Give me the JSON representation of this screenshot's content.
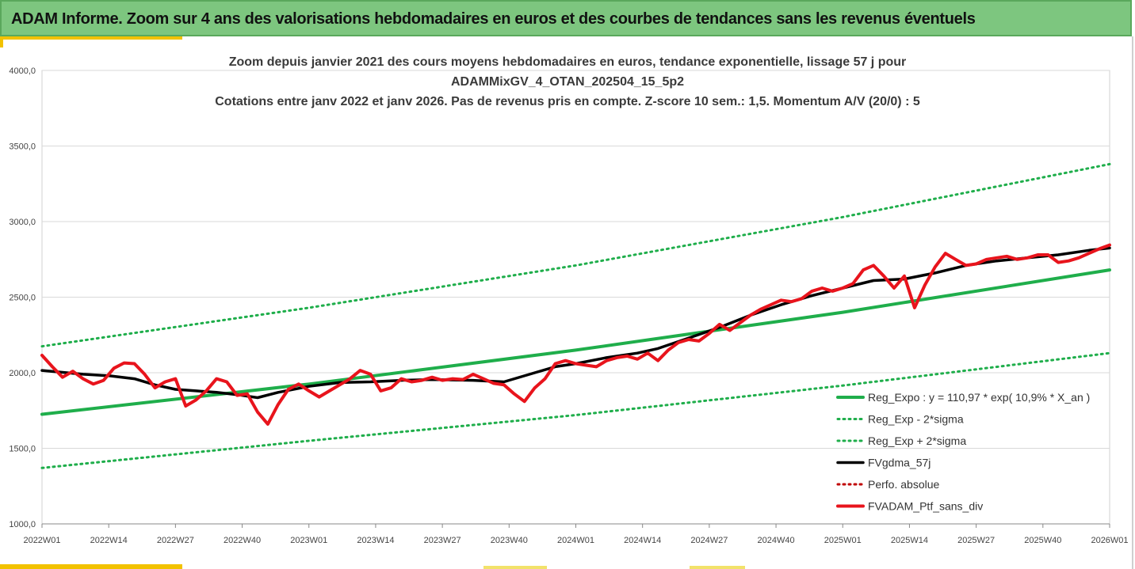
{
  "banner": {
    "title": "ADAM Informe. Zoom sur 4 ans des valorisations hebdomadaires en euros et des courbes de tendances sans les revenus éventuels"
  },
  "colors": {
    "banner_bg": "#7dc67f",
    "accent": "#f2c200",
    "reg_expo": "#1fae4b",
    "gdma": "#000000",
    "fvadam": "#e8141c",
    "perf": "#c00000"
  },
  "chart_data": {
    "type": "line",
    "title_lines": [
      "Zoom depuis janvier 2021 des cours moyens hebdomadaires  en euros, tendance exponentielle, lissage 57 j pour",
      "ADAMMixGV_4_OTAN_202504_15_5p2",
      "Cotations entre janv 2022 et janv 2026. Pas de revenus pris en compte. Z-score 10 sem.: 1,5. Momentum A/V (20/0) : 5"
    ],
    "ylim": [
      1000,
      4000
    ],
    "yticks": [
      "1000,0",
      "1500,0",
      "2000,0",
      "2500,0",
      "3000,0",
      "3500,0",
      "4000,0"
    ],
    "yticks_values": [
      1000,
      1500,
      2000,
      2500,
      3000,
      3500,
      4000
    ],
    "xlim": [
      0,
      208
    ],
    "xticks": [
      "2022W01",
      "2022W14",
      "2022W27",
      "2022W40",
      "2023W01",
      "2023W14",
      "2023W27",
      "2023W40",
      "2024W01",
      "2024W14",
      "2024W27",
      "2024W40",
      "2025W01",
      "2025W14",
      "2025W27",
      "2025W40",
      "2026W01"
    ],
    "grid": "horizontal",
    "legend_position": "bottom-right",
    "series": [
      {
        "name": "Reg_Expo : y = 110,97 * exp( 10,9% *  X_an )",
        "style": "solid",
        "color": "#1fae4b",
        "x": [
          0,
          52,
          104,
          156,
          208
        ],
        "y": [
          1725,
          1925,
          2150,
          2400,
          2680
        ]
      },
      {
        "name": "Reg_Exp - 2*sigma",
        "style": "dotted",
        "color": "#1fae4b",
        "x": [
          0,
          52,
          104,
          156,
          208
        ],
        "y": [
          1370,
          1550,
          1720,
          1915,
          2130
        ]
      },
      {
        "name": "Reg_Exp + 2*sigma",
        "style": "dotted",
        "color": "#1fae4b",
        "x": [
          0,
          52,
          104,
          156,
          208
        ],
        "y": [
          2175,
          2430,
          2710,
          3030,
          3380
        ]
      },
      {
        "name": "FVgdma_57j",
        "style": "solid",
        "color": "#000000",
        "x": [
          0,
          8,
          13,
          18,
          22,
          26,
          30,
          34,
          38,
          42,
          46,
          52,
          58,
          64,
          70,
          76,
          84,
          90,
          96,
          100,
          104,
          110,
          116,
          120,
          126,
          132,
          138,
          144,
          150,
          156,
          162,
          168,
          174,
          180,
          186,
          192,
          198,
          204,
          208
        ],
        "y": [
          2015,
          1990,
          1980,
          1960,
          1920,
          1890,
          1880,
          1870,
          1855,
          1835,
          1870,
          1910,
          1935,
          1940,
          1950,
          1955,
          1950,
          1940,
          2000,
          2040,
          2060,
          2100,
          2130,
          2160,
          2230,
          2300,
          2380,
          2450,
          2510,
          2560,
          2610,
          2620,
          2660,
          2710,
          2740,
          2760,
          2780,
          2810,
          2825
        ]
      },
      {
        "name": "Perfo. absolue",
        "style": "dotted",
        "color": "#c00000",
        "x": [],
        "y": []
      },
      {
        "name": "FVADAM_Ptf_sans_div",
        "style": "solid",
        "color": "#e8141c",
        "x": [
          0,
          2,
          4,
          6,
          8,
          10,
          12,
          14,
          16,
          18,
          20,
          22,
          24,
          26,
          28,
          30,
          32,
          34,
          36,
          38,
          40,
          42,
          44,
          46,
          48,
          50,
          52,
          54,
          56,
          58,
          60,
          62,
          64,
          66,
          68,
          70,
          72,
          74,
          76,
          78,
          80,
          82,
          84,
          86,
          88,
          90,
          92,
          94,
          96,
          98,
          100,
          102,
          104,
          106,
          108,
          110,
          112,
          114,
          116,
          118,
          120,
          122,
          124,
          126,
          128,
          130,
          132,
          134,
          136,
          138,
          140,
          142,
          144,
          146,
          148,
          150,
          152,
          154,
          156,
          158,
          160,
          162,
          164,
          166,
          168,
          170,
          172,
          174,
          176,
          178,
          180,
          182,
          184,
          186,
          188,
          190,
          192,
          194,
          196,
          198,
          200,
          202,
          204,
          206,
          208
        ],
        "y": [
          2115,
          2040,
          1970,
          2010,
          1960,
          1925,
          1950,
          2030,
          2065,
          2060,
          1990,
          1900,
          1940,
          1960,
          1780,
          1820,
          1880,
          1960,
          1940,
          1850,
          1860,
          1740,
          1660,
          1790,
          1890,
          1925,
          1880,
          1840,
          1880,
          1920,
          1960,
          2015,
          1990,
          1880,
          1900,
          1960,
          1940,
          1950,
          1970,
          1950,
          1960,
          1955,
          1990,
          1960,
          1930,
          1920,
          1860,
          1810,
          1900,
          1960,
          2060,
          2080,
          2060,
          2050,
          2040,
          2080,
          2100,
          2110,
          2090,
          2130,
          2080,
          2150,
          2200,
          2220,
          2210,
          2260,
          2320,
          2280,
          2330,
          2380,
          2420,
          2450,
          2480,
          2470,
          2490,
          2540,
          2560,
          2540,
          2560,
          2590,
          2680,
          2710,
          2640,
          2560,
          2640,
          2430,
          2580,
          2700,
          2790,
          2750,
          2710,
          2720,
          2750,
          2760,
          2770,
          2750,
          2760,
          2780,
          2780,
          2730,
          2740,
          2760,
          2790,
          2820,
          2845
        ]
      }
    ]
  }
}
